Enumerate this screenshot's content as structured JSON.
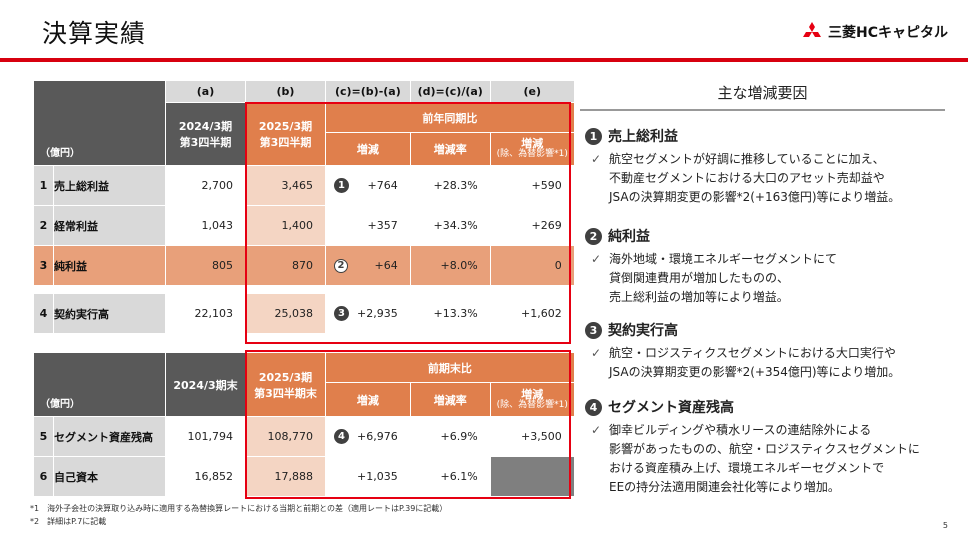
{
  "header": {
    "title": "決算実績",
    "logo_text": "三菱HCキャピタル"
  },
  "table1": {
    "col_codes": [
      "(a)",
      "(b)",
      "(c)=(b)-(a)",
      "(d)=(c)/(a)",
      "(e)"
    ],
    "unit": "（億円）",
    "col_a": "2024/3期\n第3四半期",
    "col_b": "2025/3期\n第3四半期",
    "group": "前年同期比",
    "sub_c": "増減",
    "sub_d": "増減率",
    "sub_e": "増減",
    "sub_e2": "(除、為替影響*1)",
    "rows": [
      {
        "no": "1",
        "label": "売上総利益",
        "a": "2,700",
        "b": "3,465",
        "mark": "1",
        "c": "+764",
        "d": "+28.3%",
        "e": "+590"
      },
      {
        "no": "2",
        "label": "経常利益",
        "a": "1,043",
        "b": "1,400",
        "mark": "",
        "c": "+357",
        "d": "+34.3%",
        "e": "+269"
      },
      {
        "no": "3",
        "label": "純利益",
        "a": "805",
        "b": "870",
        "mark": "2",
        "c": "+64",
        "d": "+8.0%",
        "e": "0"
      },
      {
        "no": "4",
        "label": "契約実行高",
        "a": "22,103",
        "b": "25,038",
        "mark": "3",
        "c": "+2,935",
        "d": "+13.3%",
        "e": "+1,602"
      }
    ]
  },
  "table2": {
    "unit": "（億円）",
    "col_a": "2024/3期末",
    "col_b": "2025/3期\n第3四半期末",
    "group": "前期末比",
    "sub_c": "増減",
    "sub_d": "増減率",
    "sub_e": "増減",
    "sub_e2": "(除、為替影響*1)",
    "rows": [
      {
        "no": "5",
        "label": "セグメント資産残高",
        "a": "101,794",
        "b": "108,770",
        "mark": "4",
        "c": "+6,976",
        "d": "+6.9%",
        "e": "+3,500"
      },
      {
        "no": "6",
        "label": "自己資本",
        "a": "16,852",
        "b": "17,888",
        "mark": "",
        "c": "+1,035",
        "d": "+6.1%",
        "e": ""
      }
    ]
  },
  "reasons": {
    "title": "主な増減要因",
    "items": [
      {
        "n": "1",
        "head": "売上総利益",
        "lines": [
          "航空セグメントが好調に推移していることに加え、",
          "不動産セグメントにおける大口のアセット売却益や",
          "JSAの決算期変更の影響*2(+163億円)等により増益。"
        ]
      },
      {
        "n": "2",
        "head": "純利益",
        "lines": [
          "海外地域・環境エネルギーセグメントにて",
          "貸倒関連費用が増加したものの、",
          "売上総利益の増加等により増益。"
        ]
      },
      {
        "n": "3",
        "head": "契約実行高",
        "lines": [
          "航空・ロジスティクスセグメントにおける大口実行や",
          "JSAの決算期変更の影響*2(+354億円)等により増加。"
        ]
      },
      {
        "n": "4",
        "head": "セグメント資産残高",
        "lines": [
          "御幸ビルディングや積水リースの連結除外による",
          "影響があったものの、航空・ロジスティクスセグメントに",
          "おける資産積み上げ、環境エネルギーセグメントで",
          "EEの持分法適用関連会社化等により増加。"
        ]
      }
    ]
  },
  "footnotes": [
    "*1　海外子会社の決算取り込み時に適用する為替換算レートにおける当期と前期との差（適用レートはP.39に記載）",
    "*2　詳細はP.7に記載"
  ],
  "page_number": "5"
}
